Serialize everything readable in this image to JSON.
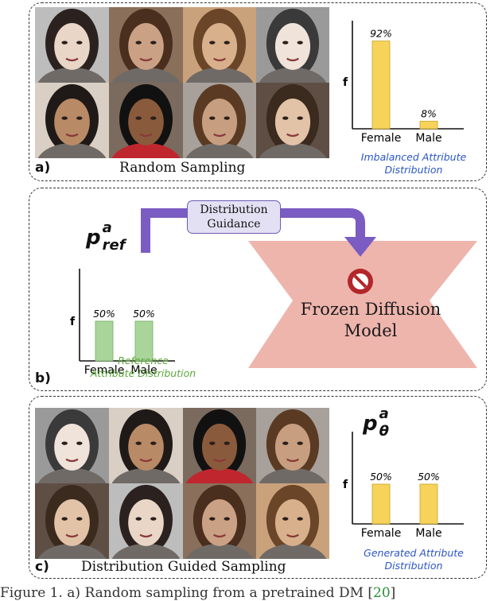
{
  "panel_a": {
    "letter": "a)",
    "caption": "Random Sampling",
    "distribution_label": [
      "Imbalanced Attribute",
      "Distribution"
    ],
    "faces": [
      "female-portrait-1",
      "female-portrait-2",
      "female-portrait-3",
      "female-portrait-4",
      "female-portrait-5",
      "male-portrait-1",
      "female-portrait-6",
      "female-portrait-7"
    ]
  },
  "panel_b": {
    "letter": "b)",
    "guidance_label": [
      "Distribution",
      "Guidance"
    ],
    "frozen_model_label": [
      "Frozen Diffusion",
      "Model"
    ],
    "frozen_icon": "prohibited-icon",
    "reference_label": [
      "Reference",
      "Attribute Distribution"
    ],
    "p_symbol": {
      "base": "p",
      "sup": "a",
      "sub": "ref"
    }
  },
  "panel_c": {
    "letter": "c)",
    "caption": "Distribution Guided Sampling",
    "distribution_label": [
      "Generated Attribute",
      "Distribution"
    ],
    "p_symbol": {
      "base": "p",
      "sup": "a",
      "sub": "θ"
    },
    "faces": [
      "female-portrait-1",
      "female-portrait-2",
      "female-portrait-3",
      "female-portrait-4",
      "male-portrait-1",
      "male-portrait-2",
      "male-portrait-3",
      "male-portrait-4"
    ]
  },
  "chart_data": [
    {
      "type": "bar",
      "panel": "a",
      "categories": [
        "Female",
        "Male"
      ],
      "values": [
        92,
        8
      ],
      "value_labels": [
        "92%",
        "8%"
      ],
      "ylabel": "f",
      "ylim": [
        0,
        100
      ],
      "color": "#f7d35c"
    },
    {
      "type": "bar",
      "panel": "b",
      "categories": [
        "Female",
        "Male"
      ],
      "values": [
        50,
        50
      ],
      "value_labels": [
        "50%",
        "50%"
      ],
      "ylabel": "f",
      "ylim": [
        0,
        100
      ],
      "color": "#a9d59a"
    },
    {
      "type": "bar",
      "panel": "c",
      "categories": [
        "Female",
        "Male"
      ],
      "values": [
        50,
        50
      ],
      "value_labels": [
        "50%",
        "50%"
      ],
      "ylabel": "f",
      "ylim": [
        0,
        100
      ],
      "color": "#f7d35c"
    }
  ],
  "colors": {
    "blue_label": "#2b56c4",
    "green_label": "#5aa63a",
    "bowtie": "#eeb5ad",
    "arrow": "#7a5cc2",
    "stop_red": "#b3262a"
  },
  "footer": {
    "prefix": "Figure 1. a) Random sampling from a pretrained DM [",
    "ref": "20",
    "suffix": "]"
  }
}
